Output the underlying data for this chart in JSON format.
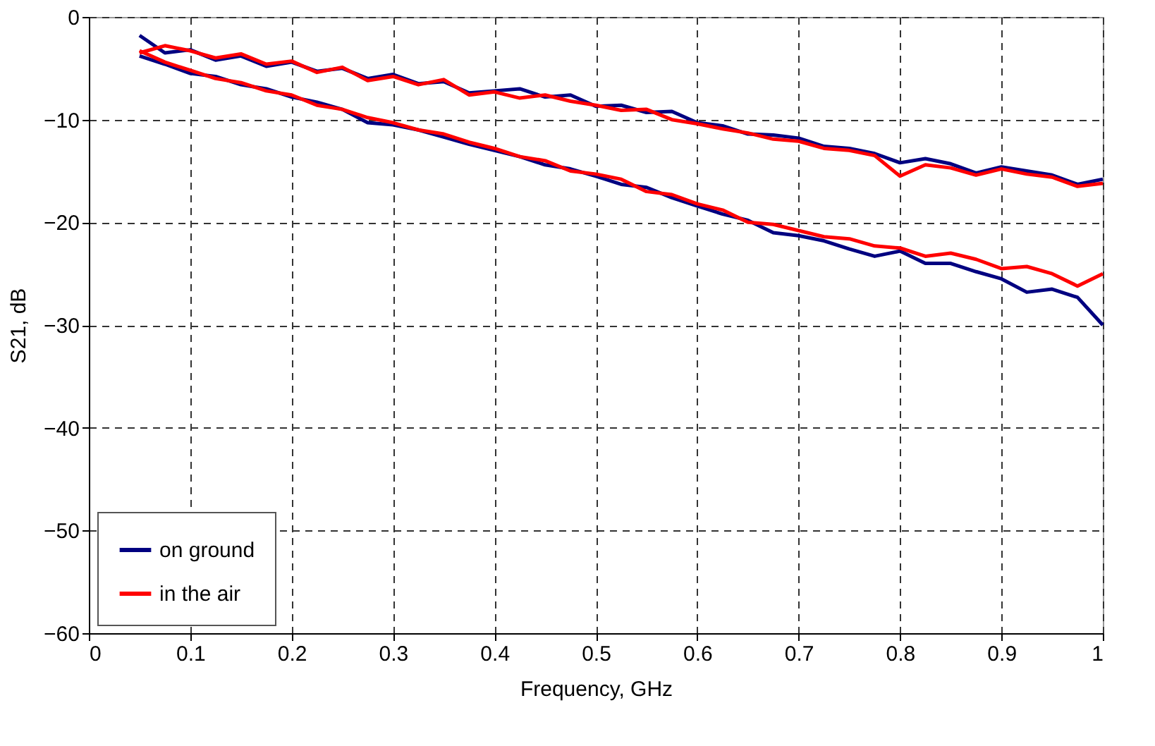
{
  "chart_data": {
    "type": "line",
    "xlabel": "Frequency, GHz",
    "ylabel": "S21, dB",
    "x": [
      0.05,
      0.075,
      0.1,
      0.125,
      0.15,
      0.175,
      0.2,
      0.225,
      0.25,
      0.275,
      0.3,
      0.325,
      0.35,
      0.375,
      0.4,
      0.425,
      0.45,
      0.475,
      0.5,
      0.525,
      0.55,
      0.575,
      0.6,
      0.625,
      0.65,
      0.675,
      0.7,
      0.725,
      0.75,
      0.775,
      0.8,
      0.825,
      0.85,
      0.875,
      0.9,
      0.925,
      0.95,
      0.975,
      1.0
    ],
    "series": [
      {
        "name": "on ground",
        "color": "#000080",
        "values": [
          -1.8,
          -3.5,
          -3.2,
          -4.2,
          -3.8,
          -4.8,
          -4.4,
          -5.3,
          -5.0,
          -6.0,
          -5.6,
          -6.5,
          -6.3,
          -7.4,
          -7.2,
          -7.0,
          -7.8,
          -7.6,
          -8.7,
          -8.6,
          -9.3,
          -9.2,
          -10.3,
          -10.6,
          -11.4,
          -11.5,
          -11.8,
          -12.6,
          -12.8,
          -13.3,
          -14.2,
          -13.8,
          -14.3,
          -15.2,
          -14.6,
          -15.0,
          -15.4,
          -16.3,
          -15.8
        ]
      },
      {
        "color": "#000080",
        "values": [
          -3.8,
          -4.6,
          -5.5,
          -5.8,
          -6.6,
          -7.0,
          -7.8,
          -8.3,
          -9.0,
          -10.3,
          -10.5,
          -11.0,
          -11.7,
          -12.4,
          -13.0,
          -13.6,
          -14.4,
          -14.8,
          -15.5,
          -16.3,
          -16.6,
          -17.6,
          -18.4,
          -19.2,
          -19.8,
          -21.0,
          -21.3,
          -21.8,
          -22.6,
          -23.3,
          -22.8,
          -24.0,
          -24.0,
          -24.8,
          -25.5,
          -26.8,
          -26.5,
          -27.3,
          -30.0
        ]
      },
      {
        "name": "in the air",
        "color": "#ff0000",
        "values": [
          -3.5,
          -2.8,
          -3.3,
          -4.0,
          -3.6,
          -4.6,
          -4.3,
          -5.4,
          -4.9,
          -6.2,
          -5.8,
          -6.6,
          -6.1,
          -7.6,
          -7.3,
          -7.9,
          -7.6,
          -8.2,
          -8.6,
          -9.1,
          -9.0,
          -10.0,
          -10.4,
          -10.9,
          -11.3,
          -11.9,
          -12.1,
          -12.8,
          -13.0,
          -13.5,
          -15.5,
          -14.4,
          -14.7,
          -15.4,
          -14.8,
          -15.3,
          -15.6,
          -16.5,
          -16.2
        ]
      },
      {
        "color": "#ff0000",
        "values": [
          -3.3,
          -4.4,
          -5.2,
          -6.0,
          -6.4,
          -7.2,
          -7.6,
          -8.6,
          -9.0,
          -9.8,
          -10.3,
          -11.0,
          -11.4,
          -12.2,
          -12.8,
          -13.6,
          -14.0,
          -15.0,
          -15.3,
          -15.8,
          -17.0,
          -17.3,
          -18.2,
          -18.8,
          -20.0,
          -20.2,
          -20.8,
          -21.4,
          -21.6,
          -22.3,
          -22.5,
          -23.3,
          -23.0,
          -23.6,
          -24.5,
          -24.3,
          -25.0,
          -26.2,
          -25.0
        ]
      }
    ],
    "xlim": [
      0,
      1
    ],
    "xticks": [
      0,
      0.1,
      0.2,
      0.3,
      0.4,
      0.5,
      0.6,
      0.7,
      0.8,
      0.9,
      1
    ],
    "ylim": [
      -60,
      0
    ],
    "yticks": [
      -60,
      -50,
      -40,
      -30,
      -20,
      -10,
      0
    ],
    "grid": true,
    "legend": "bottom left",
    "line_style": "solid"
  }
}
